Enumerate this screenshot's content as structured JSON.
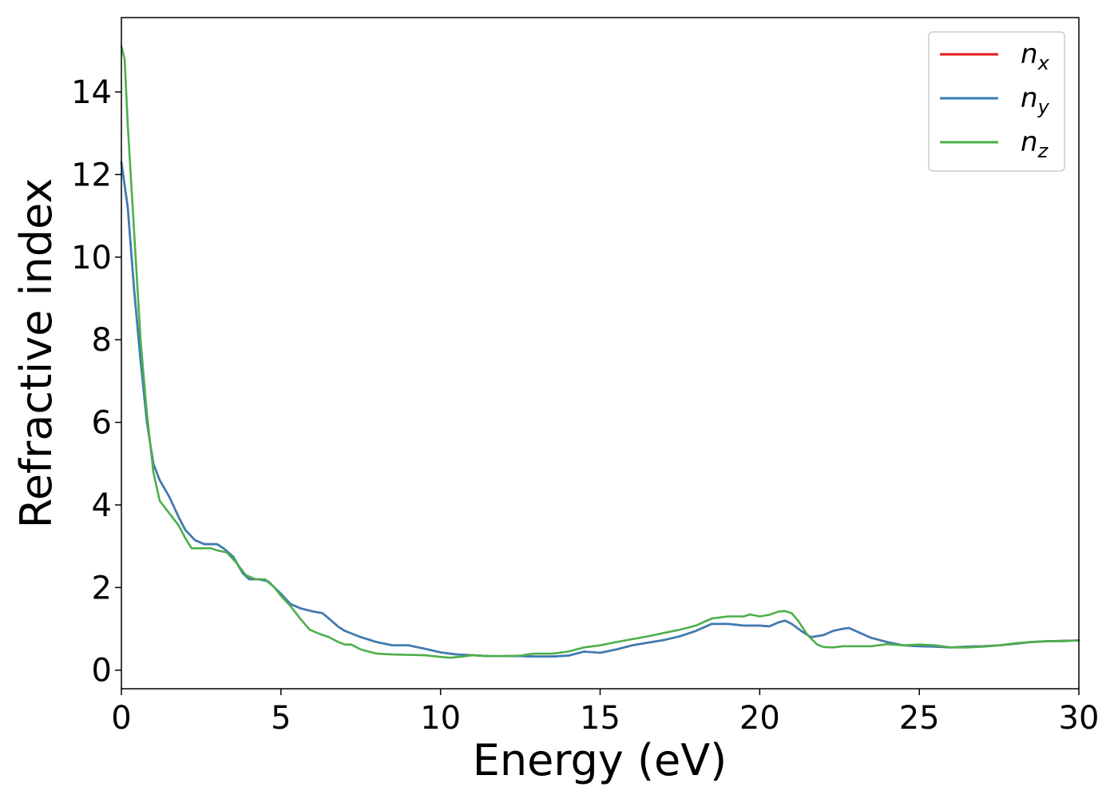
{
  "chart_data": {
    "type": "line",
    "xlabel": "Energy (eV)",
    "ylabel": "Refractive index",
    "xlim": [
      0,
      30
    ],
    "ylim": [
      -0.45,
      15.8
    ],
    "xticks": [
      0,
      5,
      10,
      15,
      20,
      25,
      30
    ],
    "yticks": [
      0,
      2,
      4,
      6,
      8,
      10,
      12,
      14
    ],
    "grid": false,
    "legend_position": "top-right",
    "series": [
      {
        "name": "n_x",
        "legend_base": "n",
        "legend_sub": "x",
        "color": "#e41a1c",
        "x": [
          0,
          0.2,
          0.4,
          0.6,
          0.8,
          1.0,
          1.2,
          1.5,
          1.8,
          2.0,
          2.3,
          2.6,
          3.0,
          3.2,
          3.5,
          3.8,
          4.0,
          4.3,
          4.6,
          4.8,
          5.0,
          5.3,
          5.6,
          6.0,
          6.3,
          6.5,
          6.8,
          7.0,
          7.5,
          8.0,
          8.5,
          9.0,
          9.5,
          10.0,
          10.5,
          11.0,
          11.5,
          12.0,
          12.5,
          13.0,
          13.5,
          14.0,
          14.5,
          15.0,
          15.5,
          16.0,
          17.0,
          17.5,
          18.0,
          18.5,
          19.0,
          19.5,
          20.0,
          20.3,
          20.6,
          20.8,
          21.0,
          21.3,
          21.6,
          22.0,
          22.3,
          22.6,
          22.8,
          23.0,
          23.5,
          24.0,
          24.5,
          25.0,
          25.5,
          26.0,
          26.5,
          27.0,
          27.5,
          28.0,
          28.5,
          29.0,
          29.5,
          30.0
        ],
        "y": [
          12.3,
          11.2,
          9.2,
          7.5,
          6.0,
          5.0,
          4.6,
          4.2,
          3.7,
          3.4,
          3.15,
          3.05,
          3.05,
          2.95,
          2.75,
          2.35,
          2.2,
          2.2,
          2.15,
          2.0,
          1.85,
          1.6,
          1.5,
          1.42,
          1.38,
          1.25,
          1.05,
          0.95,
          0.8,
          0.68,
          0.6,
          0.6,
          0.52,
          0.43,
          0.38,
          0.36,
          0.34,
          0.34,
          0.34,
          0.33,
          0.33,
          0.35,
          0.45,
          0.42,
          0.5,
          0.6,
          0.73,
          0.82,
          0.95,
          1.12,
          1.12,
          1.08,
          1.08,
          1.06,
          1.16,
          1.2,
          1.12,
          0.95,
          0.8,
          0.85,
          0.95,
          1.0,
          1.02,
          0.95,
          0.78,
          0.68,
          0.6,
          0.58,
          0.57,
          0.55,
          0.57,
          0.58,
          0.6,
          0.64,
          0.68,
          0.7,
          0.71,
          0.72
        ]
      },
      {
        "name": "n_y",
        "legend_base": "n",
        "legend_sub": "y",
        "color": "#377eb8",
        "x": [
          0,
          0.2,
          0.4,
          0.6,
          0.8,
          1.0,
          1.2,
          1.5,
          1.8,
          2.0,
          2.3,
          2.6,
          3.0,
          3.2,
          3.5,
          3.8,
          4.0,
          4.3,
          4.6,
          4.8,
          5.0,
          5.3,
          5.6,
          6.0,
          6.3,
          6.5,
          6.8,
          7.0,
          7.5,
          8.0,
          8.5,
          9.0,
          9.5,
          10.0,
          10.5,
          11.0,
          11.5,
          12.0,
          12.5,
          13.0,
          13.5,
          14.0,
          14.5,
          15.0,
          15.5,
          16.0,
          17.0,
          17.5,
          18.0,
          18.5,
          19.0,
          19.5,
          20.0,
          20.3,
          20.6,
          20.8,
          21.0,
          21.3,
          21.6,
          22.0,
          22.3,
          22.6,
          22.8,
          23.0,
          23.5,
          24.0,
          24.5,
          25.0,
          25.5,
          26.0,
          26.5,
          27.0,
          27.5,
          28.0,
          28.5,
          29.0,
          29.5,
          30.0
        ],
        "y": [
          12.3,
          11.2,
          9.2,
          7.5,
          6.0,
          5.0,
          4.6,
          4.2,
          3.7,
          3.4,
          3.15,
          3.05,
          3.05,
          2.95,
          2.75,
          2.35,
          2.2,
          2.2,
          2.15,
          2.0,
          1.85,
          1.6,
          1.5,
          1.42,
          1.38,
          1.25,
          1.05,
          0.95,
          0.8,
          0.68,
          0.6,
          0.6,
          0.52,
          0.43,
          0.38,
          0.36,
          0.34,
          0.34,
          0.34,
          0.33,
          0.33,
          0.35,
          0.45,
          0.42,
          0.5,
          0.6,
          0.73,
          0.82,
          0.95,
          1.12,
          1.12,
          1.08,
          1.08,
          1.06,
          1.16,
          1.2,
          1.12,
          0.95,
          0.8,
          0.85,
          0.95,
          1.0,
          1.02,
          0.95,
          0.78,
          0.68,
          0.6,
          0.58,
          0.57,
          0.55,
          0.57,
          0.58,
          0.6,
          0.64,
          0.68,
          0.7,
          0.71,
          0.72
        ]
      },
      {
        "name": "n_z",
        "legend_base": "n",
        "legend_sub": "z",
        "color": "#4daf4a",
        "x": [
          0,
          0.1,
          0.2,
          0.4,
          0.6,
          0.8,
          1.0,
          1.2,
          1.5,
          1.8,
          2.0,
          2.2,
          2.5,
          2.8,
          3.0,
          3.3,
          3.6,
          3.9,
          4.2,
          4.5,
          4.8,
          5.0,
          5.3,
          5.6,
          5.9,
          6.2,
          6.5,
          6.8,
          7.0,
          7.2,
          7.5,
          8.0,
          8.5,
          9.0,
          9.5,
          10.0,
          10.3,
          10.7,
          11.0,
          11.5,
          12.0,
          12.5,
          12.8,
          13.0,
          13.5,
          14.0,
          14.5,
          15.0,
          15.5,
          16.0,
          16.5,
          17.0,
          17.5,
          18.0,
          18.5,
          19.0,
          19.5,
          19.7,
          20.0,
          20.3,
          20.6,
          20.8,
          21.0,
          21.2,
          21.5,
          21.8,
          22.0,
          22.3,
          22.6,
          23.0,
          23.5,
          24.0,
          24.5,
          25.0,
          25.5,
          26.0,
          26.5,
          27.0,
          27.5,
          28.0,
          28.5,
          29.0,
          29.5,
          30.0
        ],
        "y": [
          15.1,
          14.8,
          13.2,
          10.6,
          8.0,
          6.2,
          4.8,
          4.1,
          3.8,
          3.5,
          3.2,
          2.95,
          2.95,
          2.95,
          2.9,
          2.85,
          2.6,
          2.3,
          2.2,
          2.2,
          2.0,
          1.8,
          1.55,
          1.25,
          0.98,
          0.88,
          0.8,
          0.68,
          0.62,
          0.62,
          0.5,
          0.4,
          0.38,
          0.37,
          0.36,
          0.32,
          0.3,
          0.33,
          0.36,
          0.34,
          0.34,
          0.35,
          0.39,
          0.4,
          0.4,
          0.45,
          0.55,
          0.6,
          0.68,
          0.75,
          0.82,
          0.9,
          0.98,
          1.08,
          1.25,
          1.3,
          1.3,
          1.35,
          1.3,
          1.34,
          1.42,
          1.43,
          1.38,
          1.2,
          0.85,
          0.62,
          0.56,
          0.55,
          0.58,
          0.58,
          0.58,
          0.63,
          0.6,
          0.62,
          0.6,
          0.55,
          0.55,
          0.57,
          0.6,
          0.65,
          0.68,
          0.7,
          0.7,
          0.72
        ]
      }
    ]
  }
}
